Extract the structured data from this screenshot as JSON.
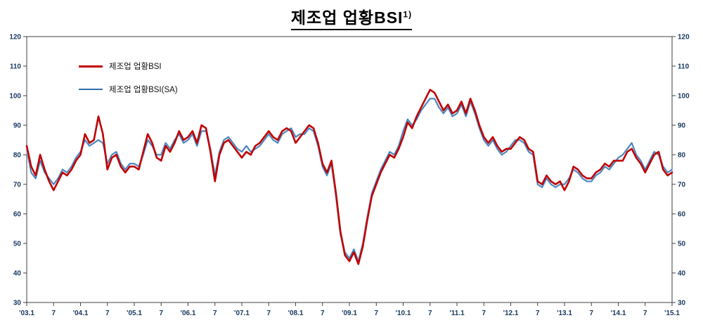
{
  "title": {
    "text": "제조업 업황BSI",
    "superscript": "1)"
  },
  "legend": {
    "items": [
      {
        "label": "제조업 업황BSI"
      },
      {
        "label": "제조업 업황BSI(SA)"
      }
    ]
  },
  "chart_data": {
    "type": "line",
    "title": "제조업 업황BSI",
    "title_superscript": "1)",
    "ylim": [
      30,
      120
    ],
    "y_ticks": [
      30,
      40,
      50,
      60,
      70,
      80,
      90,
      100,
      110,
      120
    ],
    "x_range_note": "monthly 2003.01 - 2015.01",
    "x_tick_labels": [
      "'03.1",
      "7",
      "'04.1",
      "7",
      "'05.1",
      "7",
      "'06.1",
      "7",
      "'07.1",
      "7",
      "'08.1",
      "7",
      "'09.1",
      "7",
      "'10.1",
      "7",
      "'11.1",
      "7",
      "'12.1",
      "7",
      "'13.1",
      "7",
      "'14.1",
      "7",
      "'15.1"
    ],
    "x_tick_positions": [
      0,
      6,
      12,
      18,
      24,
      30,
      36,
      42,
      48,
      54,
      60,
      66,
      72,
      78,
      84,
      90,
      96,
      102,
      108,
      114,
      120,
      126,
      132,
      138,
      144
    ],
    "legend_position": "upper-left-inside",
    "grid": false,
    "series": [
      {
        "name": "제조업 업황BSI",
        "color": "#c00000",
        "stroke_width": 2.6,
        "values": [
          83,
          76,
          73,
          80,
          75,
          71,
          68,
          71,
          74,
          73,
          75,
          78,
          80,
          87,
          84,
          85,
          93,
          87,
          75,
          79,
          80,
          76,
          74,
          76,
          76,
          75,
          81,
          87,
          84,
          79,
          78,
          83,
          81,
          84,
          88,
          85,
          86,
          88,
          84,
          90,
          89,
          81,
          71,
          80,
          84,
          85,
          83,
          81,
          79,
          81,
          80,
          83,
          84,
          86,
          88,
          86,
          85,
          88,
          89,
          88,
          84,
          86,
          88,
          90,
          89,
          84,
          77,
          74,
          78,
          67,
          54,
          46,
          44,
          47,
          43,
          49,
          58,
          66,
          70,
          74,
          77,
          80,
          79,
          82,
          86,
          91,
          89,
          93,
          96,
          99,
          102,
          101,
          98,
          95,
          97,
          94,
          95,
          98,
          94,
          99,
          95,
          90,
          86,
          84,
          86,
          83,
          81,
          82,
          82,
          84,
          86,
          85,
          82,
          81,
          71,
          70,
          73,
          71,
          70,
          71,
          68,
          71,
          76,
          75,
          73,
          72,
          72,
          74,
          75,
          77,
          76,
          78,
          78,
          78,
          81,
          82,
          79,
          77,
          74,
          77,
          80,
          81,
          75,
          73,
          74
        ]
      },
      {
        "name": "제조업 업황BSI(SA)",
        "color": "#2f6fad",
        "halo_color": "#a9c9e8",
        "stroke_width": 1.2,
        "values": [
          82,
          74,
          72,
          78,
          74,
          72,
          70,
          72,
          75,
          74,
          76,
          79,
          81,
          85,
          83,
          84,
          85,
          84,
          77,
          80,
          81,
          77,
          75,
          77,
          77,
          76,
          80,
          85,
          83,
          80,
          80,
          84,
          82,
          85,
          87,
          84,
          85,
          87,
          83,
          88,
          88,
          82,
          73,
          81,
          85,
          86,
          84,
          82,
          81,
          83,
          81,
          82,
          83,
          85,
          87,
          85,
          84,
          87,
          88,
          89,
          86,
          87,
          87,
          89,
          88,
          83,
          76,
          73,
          77,
          66,
          53,
          47,
          45,
          48,
          44,
          50,
          59,
          67,
          71,
          75,
          78,
          81,
          80,
          83,
          88,
          92,
          90,
          92,
          95,
          97,
          99,
          99,
          96,
          94,
          96,
          93,
          94,
          97,
          93,
          98,
          94,
          89,
          85,
          83,
          85,
          82,
          80,
          81,
          83,
          85,
          85,
          84,
          81,
          80,
          70,
          69,
          72,
          70,
          69,
          70,
          70,
          72,
          75,
          74,
          72,
          71,
          71,
          73,
          74,
          76,
          75,
          77,
          79,
          80,
          82,
          84,
          80,
          78,
          75,
          78,
          81,
          80,
          76,
          74,
          75
        ]
      }
    ]
  }
}
